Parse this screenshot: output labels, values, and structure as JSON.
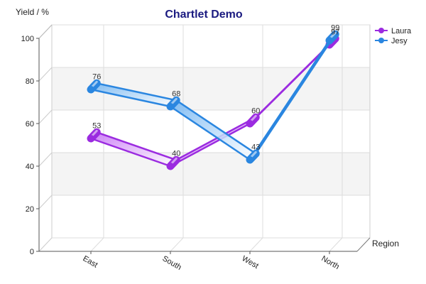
{
  "chart_data": {
    "type": "line",
    "title": "Chartlet Demo",
    "xlabel": "Region",
    "ylabel": "Yield / %",
    "categories": [
      "East",
      "South",
      "West",
      "North"
    ],
    "ylim": [
      0,
      100
    ],
    "yticks": [
      "0",
      "20",
      "40",
      "60",
      "80",
      "100"
    ],
    "grid": true,
    "legend_position": "top-right",
    "series": [
      {
        "name": "Laura",
        "values": [
          53,
          40,
          60,
          97
        ],
        "color": "#9b2be0",
        "labels": [
          "53",
          "40",
          "60",
          "97"
        ]
      },
      {
        "name": "Jesy",
        "values": [
          76,
          68,
          43,
          99
        ],
        "color": "#2a86e0",
        "labels": [
          "76",
          "68",
          "43",
          "99"
        ]
      }
    ]
  }
}
